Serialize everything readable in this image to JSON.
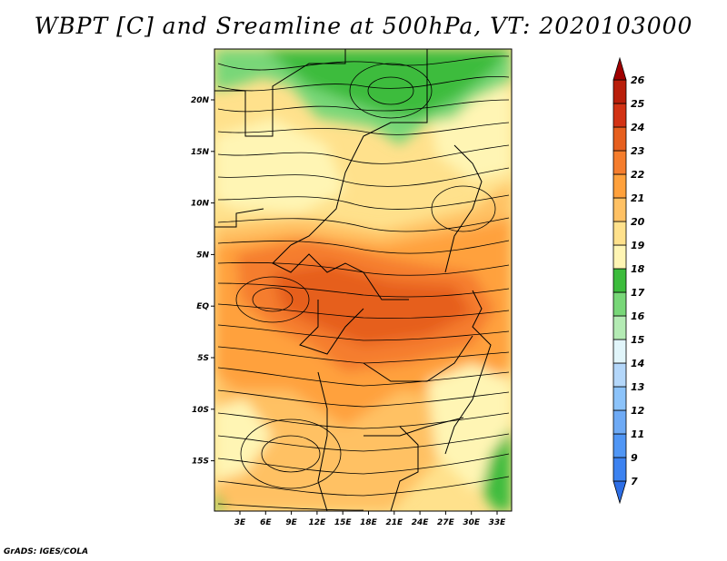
{
  "title": "WBPT [C] and Sreamline at 500hPa, VT: 2020103000",
  "footer": "GrADS: IGES/COLA",
  "map": {
    "lat_labels": [
      "20N",
      "15N",
      "10N",
      "5N",
      "EQ",
      "5S",
      "10S",
      "15S"
    ],
    "lon_labels": [
      "3E",
      "6E",
      "9E",
      "12E",
      "15E",
      "18E",
      "21E",
      "24E",
      "27E",
      "30E",
      "33E"
    ],
    "colors": {
      "green_dark": "#3cbc3c",
      "green_mid": "#5ccc5c",
      "green_light": "#8cdc84",
      "yellow_pale": "#fff5b4",
      "yellow": "#ffe18c",
      "orange_light": "#ffc164",
      "orange": "#ffa13c",
      "orange_dark": "#f57d2d",
      "red_orange": "#e65f1e"
    }
  },
  "colorbar": {
    "labels": [
      "7",
      "9",
      "11",
      "12",
      "13",
      "14",
      "15",
      "16",
      "17",
      "18",
      "19",
      "20",
      "21",
      "22",
      "23",
      "24",
      "25",
      "26"
    ],
    "colors": [
      "#2d6ee6",
      "#3c82f0",
      "#5096f5",
      "#6eaaf5",
      "#8cc3fa",
      "#b4d7fa",
      "#e1f5fa",
      "#b4ebb4",
      "#78d778",
      "#3cbc3c",
      "#fff5b4",
      "#ffe18c",
      "#ffc164",
      "#ffa13c",
      "#f57d2d",
      "#e65f1e",
      "#d23214",
      "#b91e0a",
      "#a00000"
    ]
  }
}
